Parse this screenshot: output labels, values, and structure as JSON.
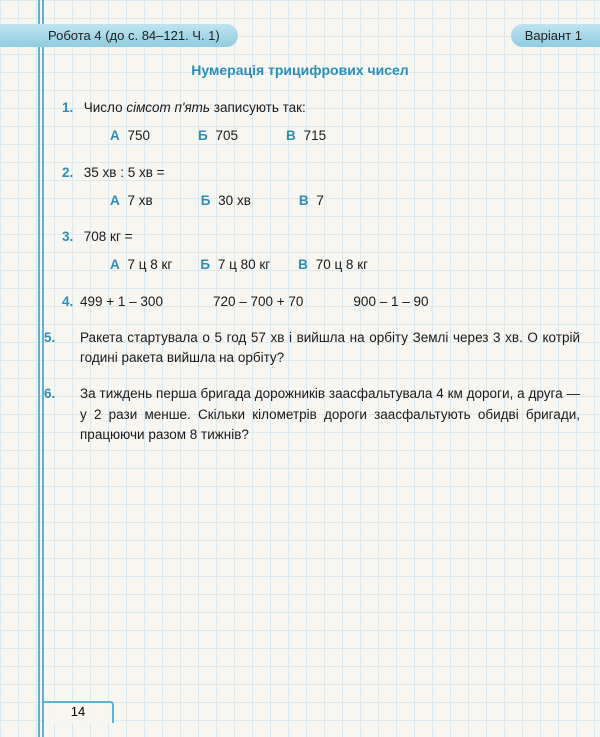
{
  "header": {
    "left": "Робота 4 (до с. 84–121. Ч. 1)",
    "right": "Варіант 1"
  },
  "title": "Нумерація трицифрових чисел",
  "questions": {
    "q1": {
      "num": "1.",
      "text_before": "Число ",
      "italic": "сімсот п'ять",
      "text_after": " записують так:",
      "opts": {
        "a": "750",
        "b": "705",
        "c": "715"
      }
    },
    "q2": {
      "num": "2.",
      "text": "35 хв : 5 хв =",
      "opts": {
        "a": "7 хв",
        "b": "30 хв",
        "c": "7"
      }
    },
    "q3": {
      "num": "3.",
      "text": "708 кг =",
      "opts": {
        "a": "7 ц 8 кг",
        "b": "7 ц 80 кг",
        "c": "70 ц 8 кг"
      }
    },
    "q4": {
      "num": "4.",
      "e1": "499 + 1 – 300",
      "e2": "720 – 700 + 70",
      "e3": "900 – 1 – 90"
    },
    "q5": {
      "num": "5.",
      "text": "Ракета стартувала о 5 год 57 хв і вийшла на орбіту Землі через 3 хв. О котрій годині ракета вийшла на орбіту?"
    },
    "q6": {
      "num": "6.",
      "text": "За тиждень перша бригада дорожників заасфальтувала 4 км дороги, а друга — у 2 рази менше. Скільки кілометрів дороги заасфальтують обидві бригади, працюючи разом 8 тижнів?"
    }
  },
  "labels": {
    "A": "А",
    "B": "Б",
    "C": "В"
  },
  "page_number": "14",
  "colors": {
    "accent": "#2a8fb8",
    "grid": "#c8e0ec",
    "margin_line": "#5bb2d7",
    "header_bg_top": "#bfe4f0",
    "header_bg_bot": "#8fcce0",
    "page_bg": "#f8f6f0",
    "text": "#1a1a1a"
  }
}
